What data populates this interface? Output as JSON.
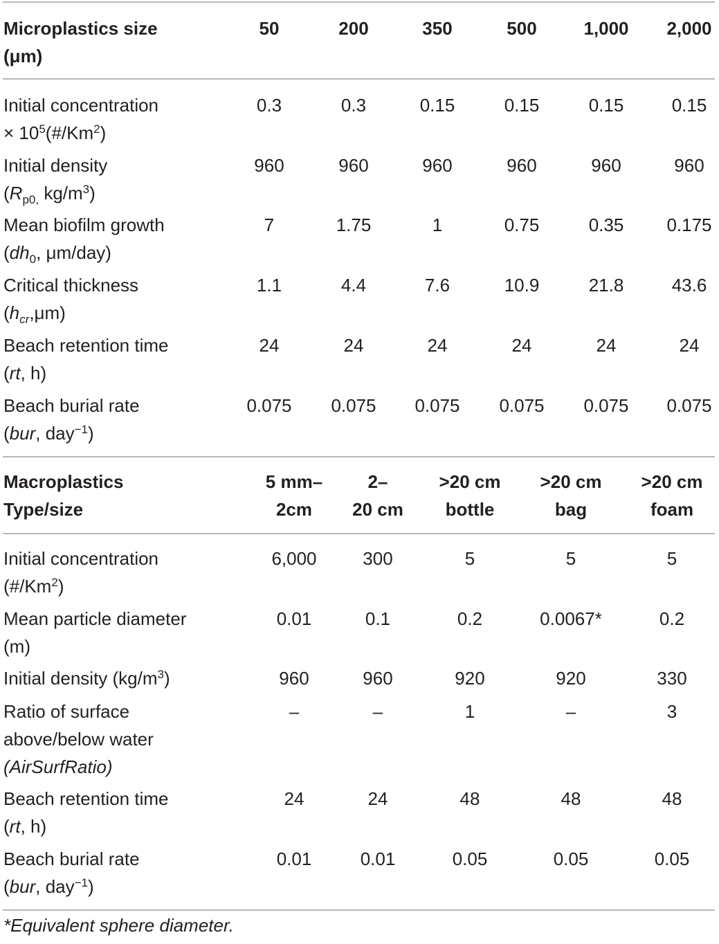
{
  "micro": {
    "header": {
      "label_line1": "Microplastics size",
      "label_line2": "(μm)",
      "cols": [
        "50",
        "200",
        "350",
        "500",
        "1,000",
        "2,000"
      ]
    },
    "rows": [
      {
        "l1": "Initial concentration",
        "l2a": "× 10",
        "l2sup": "5",
        "l2b": "(#/Km",
        "l2sup2": "2",
        "l2c": ")",
        "values": [
          "0.3",
          "0.3",
          "0.15",
          "0.15",
          "0.15",
          "0.15"
        ]
      },
      {
        "l1": "Initial density",
        "l2a": "(",
        "l2it": "R",
        "l2sub": "p0,",
        "l2b": " kg/m",
        "l2sup": "3",
        "l2c": ")",
        "values": [
          "960",
          "960",
          "960",
          "960",
          "960",
          "960"
        ]
      },
      {
        "l1": "Mean biofilm growth",
        "l2a": "(",
        "l2it": "dh",
        "l2sub": "0",
        "l2b": ", μm/day)",
        "values": [
          "7",
          "1.75",
          "1",
          "0.75",
          "0.35",
          "0.175"
        ]
      },
      {
        "l1": "Critical thickness",
        "l2a": "(",
        "l2it": "h",
        "l2sub": "cr",
        "l2b": ",μm)",
        "values": [
          "1.1",
          "4.4",
          "7.6",
          "10.9",
          "21.8",
          "43.6"
        ]
      },
      {
        "l1": "Beach retention time",
        "l2a": "(",
        "l2it": "rt",
        "l2b": ", h)",
        "values": [
          "24",
          "24",
          "24",
          "24",
          "24",
          "24"
        ]
      },
      {
        "l1": "Beach burial rate",
        "l2a": "(",
        "l2it": "bur",
        "l2b": ", day",
        "l2sup": "−1",
        "l2c": ")",
        "values": [
          "0.075",
          "0.075",
          "0.075",
          "0.075",
          "0.075",
          "0.075"
        ]
      }
    ]
  },
  "macro": {
    "header": {
      "label_line1": "Macroplastics",
      "label_line2": "Type/size",
      "cols": [
        {
          "l1": "5 mm–",
          "l2": "2cm"
        },
        {
          "l1": "2–",
          "l2": "20 cm"
        },
        {
          "l1": ">20 cm",
          "l2": "bottle"
        },
        {
          "l1": ">20 cm",
          "l2": "bag"
        },
        {
          "l1": ">20 cm",
          "l2": "foam"
        }
      ]
    },
    "rows": [
      {
        "l1": "Initial concentration",
        "l2a": "(#/Km",
        "l2sup": "2",
        "l2b": ")",
        "values": [
          "6,000",
          "300",
          "5",
          "5",
          "5"
        ]
      },
      {
        "l1": "Mean particle diameter",
        "l2a": "(m)",
        "values": [
          "0.01",
          "0.1",
          "0.2",
          "0.0067*",
          "0.2"
        ]
      },
      {
        "l1a": "Initial density (kg/m",
        "l1sup": "3",
        "l1b": ")",
        "values": [
          "960",
          "960",
          "920",
          "920",
          "330"
        ]
      },
      {
        "l1": "Ratio of surface",
        "l2": "above/below water",
        "l3": "(AirSurfRatio)",
        "values": [
          "–",
          "–",
          "1",
          "–",
          "3"
        ]
      },
      {
        "l1": "Beach retention time",
        "l2a": "(",
        "l2it": "rt",
        "l2b": ", h)",
        "values": [
          "24",
          "24",
          "48",
          "48",
          "48"
        ]
      },
      {
        "l1": "Beach burial rate",
        "l2a": "(",
        "l2it": "bur",
        "l2b": ", day",
        "l2sup": "−1",
        "l2c": ")",
        "values": [
          "0.01",
          "0.01",
          "0.05",
          "0.05",
          "0.05"
        ]
      }
    ]
  },
  "footnote": "*Equivalent sphere diameter."
}
